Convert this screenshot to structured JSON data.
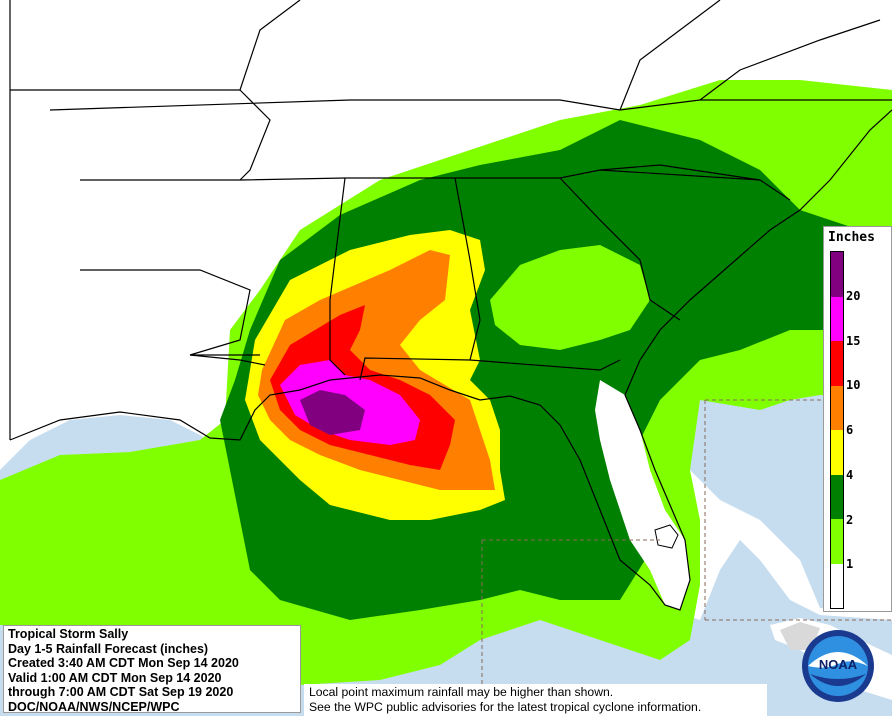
{
  "product": {
    "title_lines": [
      "Tropical Storm Sally",
      "Day 1-5 Rainfall Forecast (inches)",
      "Created 3:40 AM CDT Mon Sep 14 2020",
      "Valid 1:00 AM CDT Mon Sep 14 2020",
      "through 7:00 AM CDT Sat Sep 19 2020",
      "DOC/NOAA/NWS/NCEP/WPC"
    ]
  },
  "disclaimer": {
    "line1": "Local point maximum rainfall may be higher than shown.",
    "line2": "See the WPC public advisories for the latest tropical cyclone information."
  },
  "legend": {
    "title": "Inches",
    "bins": [
      {
        "from": 20,
        "color": "#800080"
      },
      {
        "from": 15,
        "color": "#ff00ff"
      },
      {
        "from": 10,
        "color": "#ff0000"
      },
      {
        "from": 6,
        "color": "#ff8000"
      },
      {
        "from": 4,
        "color": "#ffff00"
      },
      {
        "from": 2,
        "color": "#008000"
      },
      {
        "from": 1,
        "color": "#80ff00"
      },
      {
        "from": 0,
        "color": "#ffffff"
      }
    ],
    "tick_labels": [
      "20",
      "15",
      "10",
      "6",
      "4",
      "2",
      "1"
    ]
  },
  "logo": {
    "text": "NOAA",
    "icon": "noaa-seal-icon"
  },
  "map_colors": {
    "water": "#c6dcef",
    "land": "#ffffff",
    "boundary": "#000000",
    "cone": "#8a6a5a"
  }
}
